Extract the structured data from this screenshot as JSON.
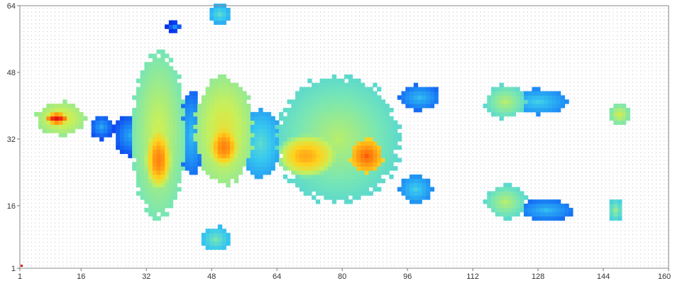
{
  "chart_data": {
    "type": "heatmap",
    "title": "",
    "xlabel": "",
    "ylabel": "",
    "xlim": [
      1,
      160
    ],
    "ylim": [
      1,
      64
    ],
    "x_ticks": [
      1,
      16,
      32,
      48,
      64,
      80,
      96,
      112,
      128,
      144,
      160
    ],
    "y_ticks": [
      1,
      16,
      32,
      48,
      64
    ],
    "x_tick_labels": [
      "1",
      "16",
      "32",
      "48",
      "64",
      "80",
      "96",
      "112",
      "128",
      "144",
      "160"
    ],
    "y_tick_labels": [
      "1",
      "16",
      "32",
      "48",
      "64"
    ],
    "grid": "dotted",
    "colormap": [
      "#0000c8",
      "#0a3cf0",
      "#1e8cf5",
      "#37c8f0",
      "#78e6b4",
      "#c8f05a",
      "#ffd21e",
      "#ff6e0a",
      "#e61414"
    ],
    "color_scale": "low = dark blue, high = red",
    "regions": [
      {
        "cx": 11,
        "cy": 37,
        "rx": 6,
        "ry": 4,
        "level": 0.55,
        "peak_cx": 10,
        "peak_cy": 37,
        "peak_level": 1.0
      },
      {
        "cx": 35,
        "cy": 33,
        "rx": 6.5,
        "ry": 20,
        "level": 0.5,
        "peak_cx": 35,
        "peak_cy": 27,
        "peak_level": 0.85
      },
      {
        "cx": 28,
        "cy": 33,
        "rx": 4,
        "ry": 5,
        "level": 0.15
      },
      {
        "cx": 51,
        "cy": 34,
        "rx": 7,
        "ry": 13,
        "level": 0.55,
        "peak_cx": 51,
        "peak_cy": 30,
        "peak_level": 0.85
      },
      {
        "cx": 43,
        "cy": 33,
        "rx": 3,
        "ry": 10,
        "level": 0.2
      },
      {
        "cx": 60,
        "cy": 31,
        "rx": 5,
        "ry": 8,
        "level": 0.3
      },
      {
        "cx": 79,
        "cy": 32,
        "rx": 15,
        "ry": 15,
        "level": 0.45,
        "peak_cx": 71,
        "peak_cy": 28,
        "peak_level": 0.8
      },
      {
        "cx": 86,
        "cy": 28,
        "rx": 4,
        "ry": 4,
        "level": 0.75
      },
      {
        "cx": 99,
        "cy": 42,
        "rx": 5,
        "ry": 3,
        "level": 0.2
      },
      {
        "cx": 98,
        "cy": 20,
        "rx": 4,
        "ry": 3.5,
        "level": 0.25
      },
      {
        "cx": 120,
        "cy": 41,
        "rx": 5,
        "ry": 4,
        "level": 0.45
      },
      {
        "cx": 128,
        "cy": 41,
        "rx": 7,
        "ry": 3,
        "level": 0.25
      },
      {
        "cx": 120,
        "cy": 17,
        "rx": 5,
        "ry": 4,
        "level": 0.45
      },
      {
        "cx": 130,
        "cy": 15,
        "rx": 7,
        "ry": 2.5,
        "level": 0.2
      },
      {
        "cx": 148,
        "cy": 38,
        "rx": 2.5,
        "ry": 2.5,
        "level": 0.5
      },
      {
        "cx": 147,
        "cy": 15,
        "rx": 1.8,
        "ry": 2.8,
        "level": 0.4
      },
      {
        "cx": 50,
        "cy": 62,
        "rx": 3,
        "ry": 2.5,
        "level": 0.3
      },
      {
        "cx": 49,
        "cy": 8,
        "rx": 3.5,
        "ry": 3,
        "level": 0.35
      },
      {
        "cx": 39,
        "cy": 59,
        "rx": 2,
        "ry": 1.2,
        "level": 0.1
      },
      {
        "cx": 21,
        "cy": 35,
        "rx": 3,
        "ry": 3,
        "level": 0.15
      }
    ]
  }
}
